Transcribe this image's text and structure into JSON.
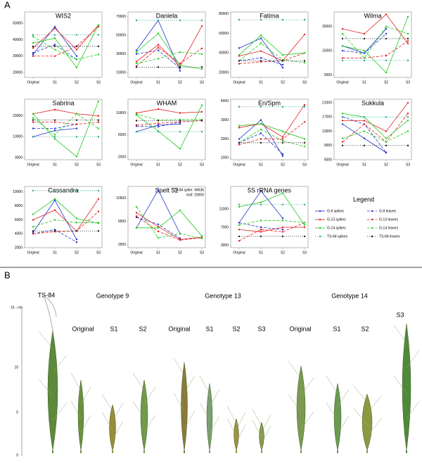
{
  "panel_a": {
    "label": "A"
  },
  "legend": {
    "title": "Legend",
    "entries": [
      {
        "name": "G-9 spikes",
        "color": "#2233cc",
        "style": "solid"
      },
      {
        "name": "G-9 leaves",
        "color": "#2233cc",
        "style": "dashed"
      },
      {
        "name": "G-13 spikes",
        "color": "#e02020",
        "style": "solid"
      },
      {
        "name": "G-13 leaves",
        "color": "#e02020",
        "style": "dashed"
      },
      {
        "name": "G-14 spikes",
        "color": "#22cc22",
        "style": "solid"
      },
      {
        "name": "G-14 leaves",
        "color": "#22cc22",
        "style": "dashed"
      },
      {
        "name": "TS-84 spikes",
        "color": "#2aa08a",
        "style": "dotted"
      },
      {
        "name": "TS-84 leaves",
        "color": "#111111",
        "style": "dotted"
      }
    ]
  },
  "chart_data": [
    {
      "type": "line",
      "title": "WIS2",
      "categories": [
        "Original",
        "S1",
        "S2",
        "S3"
      ],
      "ylim": [
        17000,
        57000
      ],
      "yticks": [
        20000,
        30000,
        40000,
        50000
      ],
      "series": [
        {
          "values": [
            31000,
            48000,
            30000,
            null
          ]
        },
        {
          "values": [
            32000,
            37000,
            28000,
            null
          ]
        },
        {
          "values": [
            35000,
            47000,
            34000,
            49000
          ]
        },
        {
          "values": [
            30000,
            30000,
            36000,
            48000
          ]
        },
        {
          "values": [
            38000,
            41000,
            23000,
            49000
          ]
        },
        {
          "values": [
            42000,
            34000,
            28000,
            31000
          ]
        },
        {
          "values": [
            43000,
            43000,
            43000,
            43000
          ]
        },
        {
          "values": [
            36000,
            36000,
            36000,
            36000
          ]
        }
      ]
    },
    {
      "type": "line",
      "title": "Daniela",
      "categories": [
        "Original",
        "S1",
        "S2",
        "S3"
      ],
      "ylim": [
        5000,
        75000
      ],
      "yticks": [
        10000,
        30000,
        50000,
        70000
      ],
      "series": [
        {
          "values": [
            34000,
            66000,
            12000,
            null
          ]
        },
        {
          "values": [
            30000,
            34000,
            15000,
            null
          ]
        },
        {
          "values": [
            22000,
            40000,
            17000,
            60000
          ]
        },
        {
          "values": [
            17000,
            37000,
            20000,
            36000
          ]
        },
        {
          "values": [
            32000,
            52000,
            18000,
            14000
          ]
        },
        {
          "values": [
            20000,
            25000,
            32000,
            30000
          ]
        },
        {
          "values": [
            66000,
            66000,
            66000,
            66000
          ]
        },
        {
          "values": [
            16000,
            16000,
            16000,
            16000
          ]
        }
      ]
    },
    {
      "type": "line",
      "title": "Fatima",
      "categories": [
        "Original",
        "S1",
        "S2",
        "S3"
      ],
      "ylim": [
        15000,
        82000
      ],
      "yticks": [
        20000,
        40000,
        60000,
        80000
      ],
      "series": [
        {
          "values": [
            45000,
            55000,
            25000,
            null
          ]
        },
        {
          "values": [
            32000,
            35000,
            28000,
            null
          ]
        },
        {
          "values": [
            37000,
            42000,
            32000,
            59000
          ]
        },
        {
          "values": [
            29000,
            31000,
            32000,
            40000
          ]
        },
        {
          "values": [
            38000,
            58000,
            38000,
            40000
          ]
        },
        {
          "values": [
            32000,
            50000,
            33000,
            30000
          ]
        },
        {
          "values": [
            74000,
            74000,
            74000,
            74000
          ]
        },
        {
          "values": [
            32000,
            32000,
            32000,
            32000
          ]
        }
      ]
    },
    {
      "type": "line",
      "title": "Wilma",
      "categories": [
        "Original",
        "S1",
        "S2",
        "S3"
      ],
      "ylim": [
        4000,
        31000
      ],
      "yticks": [
        5000,
        15000,
        25000
      ],
      "series": [
        {
          "values": [
            17000,
            14000,
            24000,
            null
          ]
        },
        {
          "values": [
            15000,
            14000,
            22000,
            null
          ]
        },
        {
          "values": [
            24000,
            22000,
            30000,
            18000
          ]
        },
        {
          "values": [
            12000,
            12000,
            13000,
            19000
          ]
        },
        {
          "values": [
            17000,
            15000,
            6000,
            29000
          ]
        },
        {
          "values": [
            22000,
            12000,
            25000,
            22000
          ]
        },
        {
          "values": [
            11000,
            11000,
            11000,
            11000
          ]
        },
        {
          "values": [
            20000,
            20000,
            20000,
            20000
          ]
        }
      ]
    },
    {
      "type": "line",
      "title": "Sabrina",
      "categories": [
        "Original",
        "S1",
        "S2",
        "S3"
      ],
      "ylim": [
        2000,
        31000
      ],
      "yticks": [
        3000,
        13000,
        23000
      ],
      "series": [
        {
          "values": [
            13000,
            16000,
            17000,
            null
          ]
        },
        {
          "values": [
            17000,
            17000,
            19000,
            null
          ]
        },
        {
          "values": [
            24000,
            26000,
            24000,
            23000
          ]
        },
        {
          "values": [
            20000,
            20000,
            19000,
            20000
          ]
        },
        {
          "values": [
            24000,
            12000,
            3500,
            30000
          ]
        },
        {
          "values": [
            22000,
            14000,
            24000,
            17000
          ]
        },
        {
          "values": [
            13000,
            13000,
            13000,
            13000
          ]
        },
        {
          "values": [
            21000,
            21000,
            21000,
            21000
          ]
        }
      ]
    },
    {
      "type": "line",
      "title": "WHAM",
      "categories": [
        "Original",
        "S1",
        "S2",
        "S3"
      ],
      "ylim": [
        1500,
        12500
      ],
      "yticks": [
        2000,
        6000,
        10000
      ],
      "series": [
        {
          "values": [
            6600,
            7800,
            8000,
            null
          ]
        },
        {
          "values": [
            7600,
            7500,
            8300,
            null
          ]
        },
        {
          "values": [
            10000,
            10700,
            10000,
            10200
          ]
        },
        {
          "values": [
            7800,
            8100,
            8400,
            8600
          ]
        },
        {
          "values": [
            9600,
            6700,
            3500,
            11400
          ]
        },
        {
          "values": [
            9800,
            8700,
            8800,
            8800
          ]
        },
        {
          "values": [
            6600,
            6600,
            6600,
            6600
          ]
        },
        {
          "values": [
            8600,
            8600,
            8600,
            8600
          ]
        }
      ]
    },
    {
      "type": "line",
      "title": "En/Spm",
      "categories": [
        "Original",
        "S1",
        "S2",
        "S3"
      ],
      "ylim": [
        900,
        4100
      ],
      "yticks": [
        1000,
        2000,
        3000,
        4000
      ],
      "series": [
        {
          "values": [
            2000,
            3000,
            1100,
            null
          ]
        },
        {
          "values": [
            1800,
            2300,
            1200,
            null
          ]
        },
        {
          "values": [
            2600,
            2800,
            2100,
            3800
          ]
        },
        {
          "values": [
            1700,
            2000,
            2000,
            2900
          ]
        },
        {
          "values": [
            2700,
            2800,
            2400,
            2000
          ]
        },
        {
          "values": [
            1800,
            2500,
            1900,
            1600
          ]
        },
        {
          "values": [
            3700,
            3700,
            3700,
            3700
          ]
        },
        {
          "values": [
            1800,
            1800,
            1800,
            1800
          ]
        }
      ]
    },
    {
      "type": "line",
      "title": "Sukkula",
      "categories": [
        "Original",
        "S1",
        "S2",
        "S3"
      ],
      "ylim": [
        5000,
        22000
      ],
      "yticks": [
        5000,
        9000,
        13000,
        17000,
        21000
      ],
      "series": [
        {
          "values": [
            15000,
            11000,
            7000,
            null
          ]
        },
        {
          "values": [
            17000,
            15000,
            7000,
            null
          ]
        },
        {
          "values": [
            16000,
            16000,
            13000,
            21000
          ]
        },
        {
          "values": [
            10000,
            15000,
            10000,
            18000
          ]
        },
        {
          "values": [
            18000,
            17000,
            11000,
            16000
          ]
        },
        {
          "values": [
            11000,
            13000,
            10000,
            13000
          ]
        },
        {
          "values": [
            17000,
            17000,
            17000,
            17000
          ]
        },
        {
          "values": [
            9000,
            9000,
            9000,
            9000
          ]
        }
      ]
    },
    {
      "type": "line",
      "title": "Cassandra",
      "categories": [
        "Original",
        "S1",
        "S2",
        "S3"
      ],
      "ylim": [
        2000,
        10800
      ],
      "yticks": [
        2000,
        4000,
        6000,
        8000,
        10000
      ],
      "series": [
        {
          "values": [
            4200,
            8800,
            3200,
            null
          ]
        },
        {
          "values": [
            4000,
            4600,
            2800,
            null
          ]
        },
        {
          "values": [
            6000,
            7400,
            4400,
            9000
          ]
        },
        {
          "values": [
            4000,
            4300,
            4400,
            7200
          ]
        },
        {
          "values": [
            6800,
            9000,
            6200,
            5500
          ]
        },
        {
          "values": [
            5000,
            6000,
            5600,
            5600
          ]
        },
        {
          "values": [
            10200,
            10200,
            10200,
            10200
          ]
        },
        {
          "values": [
            4400,
            4400,
            4400,
            4400
          ]
        }
      ]
    },
    {
      "type": "line",
      "title": "Spelt 52",
      "annotation": [
        "TS-84 spike: 49636",
        "leaf: 20000"
      ],
      "categories": [
        "Original",
        "S1",
        "S2",
        "S3"
      ],
      "ylim": [
        2000,
        12500
      ],
      "yticks": [
        2500,
        6500,
        10500
      ],
      "series": [
        {
          "values": [
            5400,
            11900,
            4400,
            null
          ]
        },
        {
          "values": [
            7200,
            6000,
            3600,
            null
          ]
        },
        {
          "values": [
            8000,
            5600,
            3400,
            3800
          ]
        },
        {
          "values": [
            7400,
            4800,
            3300,
            3700
          ]
        },
        {
          "values": [
            5400,
            5400,
            8400,
            4000
          ]
        },
        {
          "values": [
            9000,
            3700,
            4400,
            3600
          ]
        },
        {
          "values": [
            null,
            null,
            null,
            null
          ]
        },
        {
          "values": [
            null,
            null,
            null,
            null
          ]
        }
      ]
    },
    {
      "type": "line",
      "title": "5S rRNA genes",
      "categories": [
        "Original",
        "S1",
        "S2",
        "S3"
      ],
      "ylim": [
        2500,
        16000
      ],
      "yticks": [
        3000,
        7000,
        11000
      ],
      "series": [
        {
          "values": [
            8000,
            15000,
            9000,
            null
          ]
        },
        {
          "values": [
            8000,
            7000,
            6500,
            null
          ]
        },
        {
          "values": [
            6500,
            6000,
            7000,
            7000
          ]
        },
        {
          "values": [
            4000,
            6500,
            6000,
            8000
          ]
        },
        {
          "values": [
            11500,
            12500,
            14500,
            7500
          ]
        },
        {
          "values": [
            7500,
            8500,
            8500,
            8000
          ]
        },
        {
          "values": [
            12000,
            12000,
            12000,
            12000
          ]
        },
        {
          "values": [
            5000,
            5000,
            5000,
            5000
          ]
        }
      ]
    }
  ],
  "panel_b": {
    "label": "B",
    "ts84": "TS-84",
    "genotype_9": {
      "title": "Genotype 9",
      "labels": [
        "Original",
        "S1",
        "S2"
      ]
    },
    "genotype_13": {
      "title": "Genotype 13",
      "labels": [
        "Original",
        "S1",
        "S2",
        "S3"
      ]
    },
    "genotype_14": {
      "title": "Genotype 14",
      "labels": [
        "Original",
        "S1",
        "S2",
        "S3"
      ]
    },
    "scale": {
      "top": "15 - cm",
      "ticks": [
        "10",
        "5",
        "0"
      ]
    }
  }
}
